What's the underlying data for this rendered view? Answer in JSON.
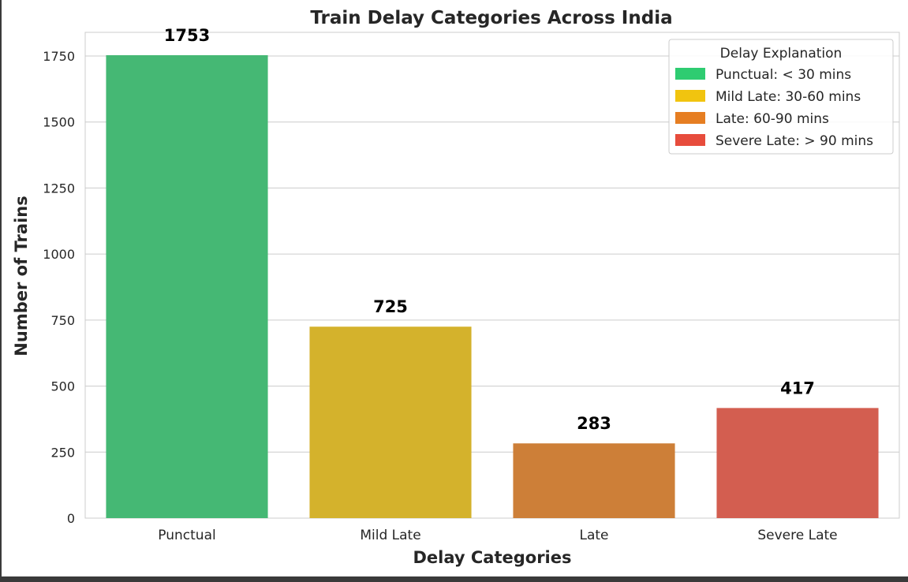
{
  "chart_data": {
    "type": "bar",
    "title": "Train Delay Categories Across India",
    "xlabel": "Delay Categories",
    "ylabel": "Number of Trains",
    "categories": [
      "Punctual",
      "Mild Late",
      "Late",
      "Severe Late"
    ],
    "values": [
      1753,
      725,
      283,
      417
    ],
    "bar_colors": [
      "#45b874",
      "#d4b22c",
      "#cd7f38",
      "#d35e50"
    ],
    "ylim": [
      0,
      1850
    ],
    "yticks": [
      0,
      250,
      500,
      750,
      1000,
      1250,
      1500,
      1750
    ],
    "grid": "horizontal",
    "legend": {
      "title": "Delay Explanation",
      "placement": "top-right",
      "entries": [
        {
          "label": "Punctual: < 30 mins",
          "color": "#2ecc71"
        },
        {
          "label": "Mild Late: 30-60 mins",
          "color": "#f1c40f"
        },
        {
          "label": "Late: 60-90 mins",
          "color": "#e67e22"
        },
        {
          "label": "Severe Late: > 90 mins",
          "color": "#e74c3c"
        }
      ]
    }
  }
}
